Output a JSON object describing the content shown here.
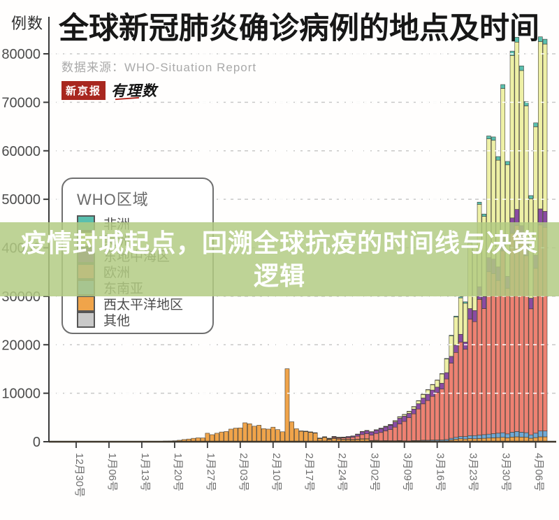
{
  "header": {
    "y_axis_unit": "例数",
    "title": "全球新冠肺炎确诊病例的地点及时间",
    "source_label": "数据来源：WHO-Situation Report",
    "logo_primary": "新京报",
    "logo_secondary": "有理数"
  },
  "overlay": {
    "line1": "疫情封城起点，回溯全球抗疫的时间线与决策",
    "line2": "逻辑",
    "background_rgba": "rgba(177,202,130,0.84)",
    "text_color": "#ffffff"
  },
  "legend": {
    "title": "WHO区域",
    "items": [
      {
        "label": "非洲",
        "color": "#59bfae"
      },
      {
        "label": "美洲",
        "color": "#eef0a6"
      },
      {
        "label": "东地中海区",
        "color": "#8a4ba2"
      },
      {
        "label": "欧洲",
        "color": "#ee8172"
      },
      {
        "label": "东南亚",
        "color": "#6fa9d6"
      },
      {
        "label": "西太平洋地区",
        "color": "#f0a44a"
      },
      {
        "label": "其他",
        "color": "#c9c9c9"
      }
    ]
  },
  "chart_data": {
    "type": "bar",
    "stacked": true,
    "title": "全球新冠肺炎确诊病例的地点及时间",
    "source": "WHO-Situation Report",
    "ylabel": "例数",
    "ylim": [
      0,
      80000
    ],
    "grid": "dashed horizontal",
    "legend_position": "upper-left box",
    "y_tick_labels": [
      "0",
      "10000",
      "20000",
      "30000",
      "40000",
      "50000",
      "60000",
      "70000",
      "80000"
    ],
    "x_tick_labels": [
      "12月30号",
      "1月06号",
      "1月13号",
      "1月20号",
      "1月27号",
      "2月03号",
      "2月10号",
      "2月17号",
      "2月24号",
      "3月02号",
      "3月09号",
      "3月16号",
      "3月23号",
      "3月30号",
      "4月06号"
    ],
    "x_tick_interval_days": 7,
    "days": 101,
    "notable_points": {
      "feb13_spike_total": 15050,
      "early_april_peak_total": 83500
    },
    "series": [
      {
        "name": "其他",
        "color": "#c9c9c9",
        "values": [
          0,
          0,
          0,
          0,
          0,
          0,
          0,
          0,
          0,
          0,
          0,
          0,
          0,
          0,
          0,
          0,
          0,
          0,
          0,
          0,
          0,
          0,
          0,
          0,
          0,
          0,
          0,
          0,
          0,
          0,
          0,
          0,
          0,
          0,
          0,
          0,
          0,
          0,
          0,
          0,
          0,
          0,
          0,
          0,
          0,
          0,
          60,
          70,
          70,
          100,
          100,
          80,
          150,
          130,
          80,
          60,
          60,
          50,
          40,
          30,
          20,
          10,
          10,
          10,
          10,
          10,
          10,
          10,
          10,
          10,
          10,
          10,
          10,
          10,
          10,
          10,
          10,
          10,
          10,
          10,
          10,
          10,
          10,
          10,
          10,
          10,
          10,
          10,
          10,
          10,
          10,
          10,
          10,
          10,
          10,
          10,
          10,
          10,
          10,
          10,
          10
        ]
      },
      {
        "name": "西太平洋地区",
        "color": "#f0a44a",
        "values": [
          40,
          0,
          0,
          0,
          0,
          0,
          0,
          0,
          0,
          0,
          40,
          0,
          0,
          0,
          0,
          60,
          80,
          50,
          100,
          140,
          150,
          200,
          300,
          450,
          550,
          700,
          800,
          780,
          1750,
          1450,
          1750,
          2000,
          2100,
          2600,
          2800,
          2850,
          3900,
          3700,
          3200,
          3400,
          2700,
          2600,
          3000,
          2500,
          2050,
          15050,
          4050,
          2600,
          2150,
          2050,
          1890,
          1750,
          560,
          800,
          420,
          650,
          520,
          450,
          440,
          430,
          480,
          570,
          580,
          210,
          250,
          160,
          180,
          150,
          130,
          160,
          100,
          60,
          130,
          120,
          150,
          120,
          140,
          130,
          110,
          140,
          350,
          500,
          600,
          550,
          650,
          600,
          650,
          700,
          750,
          800,
          850,
          900,
          800,
          950,
          1000,
          950,
          900,
          700,
          850,
          1000,
          1000
        ]
      },
      {
        "name": "东南亚",
        "color": "#6fa9d6",
        "values": [
          0,
          0,
          0,
          0,
          0,
          0,
          0,
          0,
          0,
          0,
          0,
          0,
          0,
          0,
          0,
          0,
          0,
          0,
          0,
          0,
          0,
          0,
          0,
          0,
          0,
          0,
          0,
          0,
          0,
          0,
          0,
          0,
          0,
          0,
          0,
          0,
          0,
          0,
          0,
          0,
          0,
          0,
          0,
          0,
          0,
          0,
          0,
          0,
          0,
          5,
          5,
          5,
          5,
          10,
          10,
          10,
          10,
          10,
          10,
          10,
          15,
          20,
          25,
          25,
          30,
          35,
          40,
          50,
          60,
          80,
          80,
          90,
          100,
          120,
          150,
          170,
          200,
          220,
          250,
          300,
          350,
          400,
          450,
          500,
          600,
          650,
          700,
          750,
          800,
          850,
          900,
          950,
          800,
          1000,
          1100,
          1000,
          950,
          700,
          900,
          1200,
          1200
        ]
      },
      {
        "name": "欧洲",
        "color": "#ee8172",
        "values": [
          0,
          0,
          0,
          0,
          0,
          0,
          0,
          0,
          0,
          0,
          0,
          0,
          0,
          0,
          0,
          0,
          0,
          0,
          0,
          0,
          0,
          0,
          0,
          0,
          0,
          0,
          0,
          0,
          0,
          0,
          0,
          0,
          0,
          0,
          0,
          0,
          0,
          0,
          0,
          0,
          0,
          0,
          0,
          0,
          0,
          0,
          0,
          0,
          5,
          5,
          10,
          10,
          30,
          50,
          100,
          170,
          200,
          280,
          330,
          440,
          620,
          870,
          1050,
          1100,
          1400,
          1700,
          2000,
          2300,
          2800,
          3400,
          4000,
          4800,
          5500,
          6500,
          7500,
          8200,
          9000,
          9800,
          10500,
          12500,
          15500,
          17500,
          19500,
          18000,
          24000,
          23500,
          28000,
          26000,
          33500,
          33000,
          31500,
          37500,
          30000,
          41000,
          42500,
          39500,
          36500,
          26000,
          34000,
          42500,
          42000
        ]
      },
      {
        "name": "东地中海区",
        "color": "#8a4ba2",
        "values": [
          0,
          0,
          0,
          0,
          0,
          0,
          0,
          0,
          0,
          0,
          0,
          0,
          0,
          0,
          0,
          0,
          0,
          0,
          0,
          0,
          0,
          0,
          0,
          0,
          0,
          0,
          0,
          0,
          0,
          0,
          0,
          0,
          0,
          0,
          0,
          0,
          0,
          0,
          0,
          0,
          0,
          0,
          0,
          0,
          0,
          0,
          0,
          0,
          0,
          0,
          0,
          0,
          10,
          30,
          90,
          180,
          120,
          150,
          230,
          250,
          380,
          590,
          600,
          650,
          700,
          780,
          830,
          900,
          1100,
          1200,
          1100,
          900,
          1000,
          1100,
          1200,
          1300,
          1300,
          1100,
          1200,
          1300,
          1400,
          1500,
          1600,
          1500,
          2200,
          2300,
          2600,
          2500,
          2900,
          3000,
          2800,
          3000,
          2500,
          3200,
          3300,
          3100,
          2900,
          2200,
          2700,
          3300,
          3300
        ]
      },
      {
        "name": "美洲",
        "color": "#eef0a6",
        "values": [
          0,
          0,
          0,
          0,
          0,
          0,
          0,
          0,
          0,
          0,
          0,
          0,
          0,
          0,
          0,
          0,
          0,
          0,
          0,
          0,
          0,
          0,
          0,
          0,
          0,
          0,
          0,
          0,
          0,
          0,
          0,
          0,
          0,
          0,
          0,
          0,
          0,
          0,
          0,
          0,
          0,
          0,
          0,
          0,
          0,
          0,
          0,
          0,
          0,
          5,
          10,
          10,
          10,
          15,
          20,
          20,
          20,
          25,
          30,
          40,
          50,
          60,
          70,
          70,
          80,
          100,
          120,
          150,
          250,
          300,
          350,
          400,
          500,
          600,
          750,
          900,
          1100,
          1400,
          1900,
          2800,
          4200,
          5800,
          7500,
          8000,
          13500,
          13000,
          17000,
          16500,
          24500,
          24500,
          22000,
          30500,
          23000,
          33500,
          34500,
          32000,
          28000,
          20500,
          26500,
          34500,
          34500
        ]
      },
      {
        "name": "非洲",
        "color": "#59bfae",
        "values": [
          0,
          0,
          0,
          0,
          0,
          0,
          0,
          0,
          0,
          0,
          0,
          0,
          0,
          0,
          0,
          0,
          0,
          0,
          0,
          0,
          0,
          0,
          0,
          0,
          0,
          0,
          0,
          0,
          0,
          0,
          0,
          0,
          0,
          0,
          0,
          0,
          0,
          0,
          0,
          0,
          0,
          0,
          0,
          0,
          0,
          0,
          0,
          0,
          0,
          0,
          0,
          0,
          0,
          0,
          0,
          0,
          0,
          0,
          0,
          0,
          5,
          5,
          5,
          5,
          5,
          5,
          5,
          10,
          10,
          10,
          10,
          15,
          20,
          30,
          40,
          50,
          60,
          70,
          90,
          120,
          150,
          200,
          250,
          300,
          350,
          400,
          450,
          500,
          600,
          700,
          750,
          800,
          700,
          900,
          1000,
          950,
          900,
          650,
          800,
          1000,
          1000
        ]
      }
    ]
  }
}
